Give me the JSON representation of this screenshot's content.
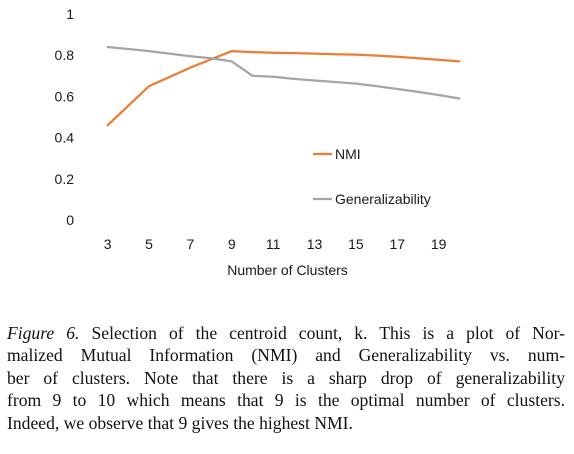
{
  "chart_data": {
    "type": "line",
    "x": [
      3,
      5,
      7,
      8,
      9,
      10,
      11,
      12,
      13,
      14,
      15,
      16,
      17,
      18,
      19,
      20
    ],
    "series": [
      {
        "name": "NMI",
        "color": "#ed7d31",
        "values": [
          0.46,
          0.65,
          0.74,
          0.78,
          0.82,
          0.815,
          0.812,
          0.81,
          0.808,
          0.805,
          0.803,
          0.798,
          0.792,
          0.785,
          0.778,
          0.77
        ]
      },
      {
        "name": "Generalizability",
        "color": "#a5a5a5",
        "values": [
          0.84,
          0.82,
          0.795,
          0.785,
          0.77,
          0.7,
          0.695,
          0.685,
          0.677,
          0.67,
          0.662,
          0.65,
          0.636,
          0.622,
          0.607,
          0.59
        ]
      }
    ],
    "xticks": [
      "3",
      "5",
      "7",
      "9",
      "11",
      "13",
      "15",
      "17",
      "19"
    ],
    "yticks": [
      "0",
      "0.2",
      "0.4",
      "0.6",
      "0.8",
      "1"
    ],
    "xlabel": "Number of Clusters",
    "ylabel": "",
    "title": "",
    "xlim": [
      2,
      21
    ],
    "ylim": [
      0,
      1
    ],
    "grid": false,
    "legend": "inside, right"
  },
  "caption": {
    "label": "Figure 6.",
    "lines": [
      " Selection of the centroid count, k. This is a plot of Nor-",
      "malized Mutual Information (NMI) and Generalizability vs. num-",
      "ber of clusters. Note that there is a sharp drop of generalizability",
      "from 9 to 10 which means that 9 is the optimal number of clusters.",
      "Indeed, we observe that 9 gives the highest NMI."
    ]
  }
}
